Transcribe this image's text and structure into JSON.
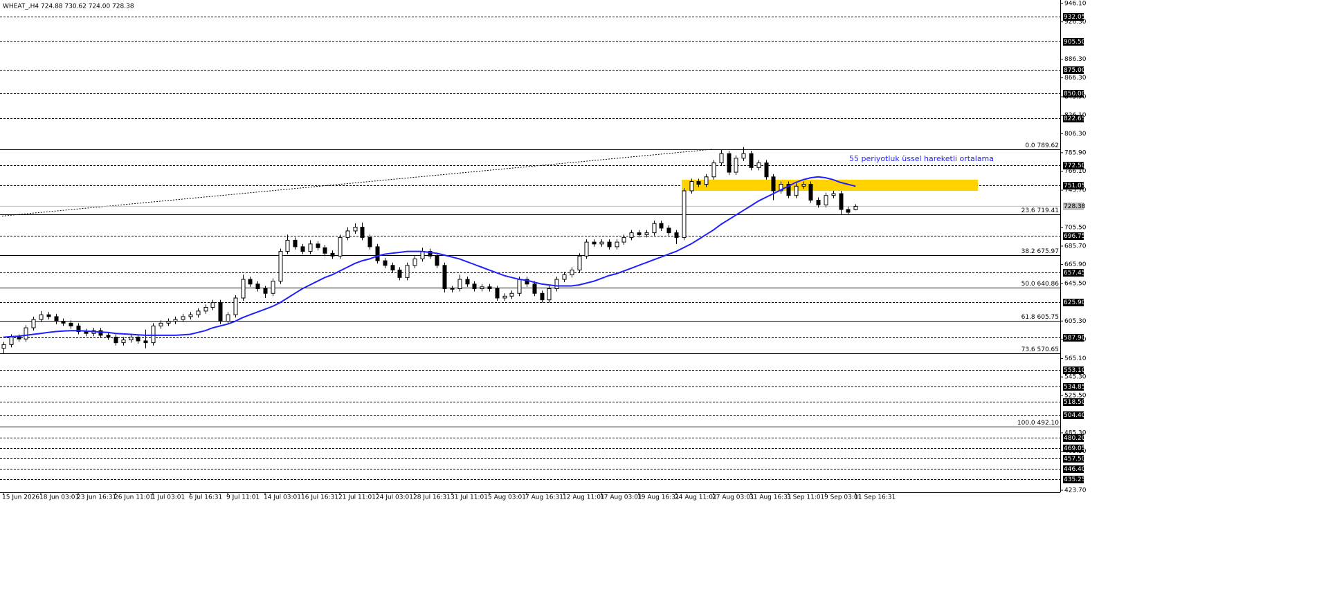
{
  "chart_data": {
    "type": "candlestick",
    "title": "WHEAT_,H4  724.88 730.62 724.00 728.38",
    "annotation": "55 periyotluk üssel hareketli ortalama",
    "categories": [
      "15 Jun 2026",
      null,
      null,
      null,
      null,
      "18 Jun 03:01",
      null,
      null,
      null,
      null,
      "23 Jun 16:31",
      null,
      null,
      null,
      null,
      "26 Jun 11:01",
      null,
      null,
      null,
      null,
      "1 Jul 03:01",
      null,
      null,
      null,
      null,
      "6 Jul 16:31",
      null,
      null,
      null,
      null,
      "9 Jul 11:01",
      null,
      null,
      null,
      null,
      "14 Jul 03:01",
      null,
      null,
      null,
      null,
      "16 Jul 16:31",
      null,
      null,
      null,
      null,
      "21 Jul 11:01",
      null,
      null,
      null,
      null,
      "24 Jul 03:01",
      null,
      null,
      null,
      null,
      "28 Jul 16:31",
      null,
      null,
      null,
      null,
      "31 Jul 11:01",
      null,
      null,
      null,
      null,
      "5 Aug 03:01",
      null,
      null,
      null,
      null,
      "7 Aug 16:31",
      null,
      null,
      null,
      null,
      "12 Aug 11:01",
      null,
      null,
      null,
      null,
      "17 Aug 03:01",
      null,
      null,
      null,
      null,
      "19 Aug 16:31",
      null,
      null,
      null,
      null,
      "24 Aug 11:01",
      null,
      null,
      null,
      null,
      "27 Aug 03:01",
      null,
      null,
      null,
      null,
      "31 Aug 16:31",
      null,
      null,
      null,
      null,
      "3 Sep 11:01",
      null,
      null,
      null,
      null,
      "9 Sep 03:01",
      null,
      null,
      null,
      "11 Sep 16:31"
    ],
    "open": [
      576,
      580,
      588,
      586,
      598,
      607,
      612,
      610,
      605,
      603,
      600,
      594,
      592,
      595,
      590,
      588,
      582,
      585,
      588,
      584,
      582,
      600,
      603,
      605,
      607,
      610,
      612,
      616,
      620,
      625,
      605,
      612,
      630,
      650,
      645,
      640,
      635,
      648,
      680,
      692,
      685,
      680,
      688,
      684,
      678,
      675,
      695,
      702,
      706,
      695,
      685,
      670,
      665,
      660,
      652,
      665,
      672,
      680,
      675,
      665,
      640,
      640,
      650,
      645,
      640,
      642,
      640,
      630,
      632,
      635,
      650,
      645,
      635,
      628,
      640,
      650,
      655,
      660,
      675,
      690,
      688,
      690,
      685,
      690,
      695,
      700,
      698,
      700,
      710,
      705,
      700,
      695,
      745,
      755,
      752,
      760,
      775,
      785,
      765,
      780,
      785,
      770,
      775,
      760,
      745,
      752,
      740,
      750,
      752,
      735,
      730,
      740,
      742,
      725,
      724.88
    ],
    "high": [
      583,
      591,
      591,
      601,
      610,
      616,
      615,
      613,
      608,
      606,
      603,
      597,
      598,
      598,
      593,
      591,
      588,
      591,
      591,
      596,
      603,
      606,
      608,
      610,
      613,
      615,
      619,
      623,
      628,
      628,
      615,
      633,
      655,
      653,
      648,
      643,
      651,
      683,
      698,
      695,
      688,
      692,
      691,
      687,
      681,
      698,
      706,
      710,
      711,
      698,
      688,
      673,
      668,
      663,
      668,
      675,
      684,
      683,
      678,
      668,
      643,
      655,
      653,
      648,
      645,
      645,
      643,
      635,
      638,
      653,
      653,
      648,
      638,
      643,
      653,
      658,
      663,
      678,
      693,
      693,
      693,
      693,
      693,
      698,
      703,
      703,
      703,
      713,
      713,
      708,
      703,
      748,
      758,
      758,
      763,
      778,
      789,
      788,
      783,
      792,
      788,
      778,
      778,
      763,
      755,
      755,
      753,
      755,
      755,
      738,
      743,
      745,
      745,
      728,
      730.62
    ],
    "low": [
      570,
      577,
      583,
      583,
      595,
      604,
      607,
      602,
      600,
      597,
      591,
      589,
      589,
      587,
      585,
      579,
      579,
      582,
      581,
      576,
      579,
      597,
      600,
      602,
      604,
      607,
      609,
      613,
      617,
      602,
      602,
      609,
      627,
      642,
      637,
      630,
      632,
      645,
      677,
      682,
      677,
      677,
      681,
      675,
      672,
      672,
      692,
      699,
      692,
      682,
      667,
      662,
      657,
      649,
      649,
      662,
      669,
      672,
      662,
      636,
      636,
      637,
      642,
      637,
      637,
      637,
      627,
      627,
      629,
      632,
      642,
      632,
      625,
      625,
      637,
      647,
      652,
      657,
      672,
      685,
      685,
      682,
      682,
      687,
      692,
      695,
      695,
      697,
      702,
      697,
      688,
      692,
      742,
      749,
      749,
      757,
      772,
      762,
      762,
      777,
      767,
      767,
      757,
      735,
      742,
      737,
      737,
      747,
      732,
      727,
      727,
      737,
      720,
      719,
      724.0
    ],
    "close": [
      580,
      588,
      586,
      598,
      607,
      612,
      610,
      605,
      603,
      600,
      594,
      592,
      595,
      590,
      588,
      582,
      585,
      588,
      584,
      582,
      600,
      603,
      605,
      607,
      610,
      612,
      616,
      620,
      625,
      605,
      612,
      630,
      650,
      645,
      640,
      635,
      648,
      680,
      692,
      685,
      680,
      688,
      684,
      678,
      675,
      695,
      702,
      706,
      695,
      685,
      670,
      665,
      660,
      652,
      665,
      672,
      680,
      675,
      665,
      640,
      640,
      650,
      645,
      640,
      642,
      640,
      630,
      632,
      635,
      650,
      645,
      635,
      628,
      640,
      650,
      655,
      660,
      675,
      690,
      688,
      690,
      685,
      690,
      695,
      700,
      698,
      700,
      710,
      705,
      700,
      695,
      745,
      755,
      752,
      760,
      775,
      785,
      765,
      780,
      785,
      770,
      775,
      760,
      745,
      752,
      740,
      750,
      752,
      735,
      730,
      740,
      742,
      725,
      722,
      728.38
    ],
    "candle_colors": {
      "up": "#ffffff",
      "down": "#000000",
      "outline": "#000000"
    },
    "ema": {
      "color": "#1f1fff",
      "values": [
        588,
        588.5,
        589,
        590,
        591,
        592,
        593,
        594,
        594.5,
        595,
        595,
        594.5,
        594,
        593.5,
        593,
        592,
        591.5,
        591,
        590.5,
        590,
        590,
        590,
        590,
        590,
        590.5,
        591,
        593,
        595,
        598,
        600,
        602,
        605,
        609,
        612,
        615,
        618,
        621,
        625,
        630,
        635,
        640,
        644,
        648,
        652,
        655,
        659,
        663,
        667,
        670,
        672,
        675,
        677,
        678,
        679,
        680,
        680,
        680,
        679,
        678,
        676,
        674,
        672,
        669,
        666,
        663,
        660,
        657,
        654,
        652,
        650,
        649,
        647,
        645,
        644,
        643,
        643,
        643,
        644,
        646,
        648,
        651,
        654,
        656,
        659,
        662,
        665,
        668,
        671,
        674,
        677,
        680,
        684,
        688,
        693,
        698,
        703,
        709,
        714,
        719,
        724,
        729,
        734,
        738,
        742,
        746,
        750,
        754,
        757,
        759,
        760,
        759,
        757,
        754,
        752,
        750
      ]
    },
    "zone": {
      "values": [
        745,
        757
      ],
      "color": "#ffd200"
    },
    "ylim": [
      423.7,
      946.1
    ],
    "yticks": [
      {
        "value": 946.1,
        "label": "946.10"
      },
      {
        "value": 926.3,
        "label": "926.30"
      },
      {
        "value": 886.3,
        "label": "886.30"
      },
      {
        "value": 866.3,
        "label": "866.30"
      },
      {
        "value": 845.9,
        "label": "845.90"
      },
      {
        "value": 826.1,
        "label": "826.10"
      },
      {
        "value": 806.3,
        "label": "806.30"
      },
      {
        "value": 785.9,
        "label": "785.90"
      },
      {
        "value": 766.1,
        "label": "766.10"
      },
      {
        "value": 745.7,
        "label": "745.70"
      },
      {
        "value": 705.5,
        "label": "705.50"
      },
      {
        "value": 685.7,
        "label": "685.70"
      },
      {
        "value": 665.9,
        "label": "665.90"
      },
      {
        "value": 645.5,
        "label": "645.50"
      },
      {
        "value": 605.3,
        "label": "605.30"
      },
      {
        "value": 585.5,
        "label": "585.50"
      },
      {
        "value": 565.1,
        "label": "565.10"
      },
      {
        "value": 545.3,
        "label": "545.30"
      },
      {
        "value": 525.5,
        "label": "525.50"
      },
      {
        "value": 485.3,
        "label": "485.30"
      },
      {
        "value": 465.5,
        "label": "465.50"
      },
      {
        "value": 423.7,
        "label": "423.70"
      }
    ],
    "levels": [
      {
        "value": 932.05,
        "label": "932.05"
      },
      {
        "value": 905.5,
        "label": "905.50"
      },
      {
        "value": 875,
        "label": "875.00"
      },
      {
        "value": 850,
        "label": "850.00"
      },
      {
        "value": 822.65,
        "label": "822.65"
      },
      {
        "value": 772.5,
        "label": "772.50"
      },
      {
        "value": 751.05,
        "label": "751.05"
      },
      {
        "value": 696.75,
        "label": "696.75"
      },
      {
        "value": 657.45,
        "label": "657.45"
      },
      {
        "value": 625.9,
        "label": "625.90"
      },
      {
        "value": 587.9,
        "label": "587.90"
      },
      {
        "value": 553.1,
        "label": "553.10"
      },
      {
        "value": 534.85,
        "label": "534.85"
      },
      {
        "value": 518.5,
        "label": "518.50"
      },
      {
        "value": 504.4,
        "label": "504.40"
      },
      {
        "value": 480.2,
        "label": "480.20"
      },
      {
        "value": 469.05,
        "label": "469.05"
      },
      {
        "value": 457.5,
        "label": "457.50"
      },
      {
        "value": 446.4,
        "label": "446.40"
      },
      {
        "value": 435.25,
        "label": "435.25"
      }
    ],
    "fib_levels": [
      {
        "value": 789.62,
        "label": "0.0 789.62"
      },
      {
        "value": 719.41,
        "label": "23.6 719.41"
      },
      {
        "value": 675.97,
        "label": "38.2 675.97"
      },
      {
        "value": 640.86,
        "label": "50.0 640.86"
      },
      {
        "value": 605.75,
        "label": "61.8 605.75"
      },
      {
        "value": 570.65,
        "label": "73.6 570.65"
      },
      {
        "value": 492.1,
        "label": "100.0 492.10"
      }
    ],
    "last_price": 728.38
  }
}
